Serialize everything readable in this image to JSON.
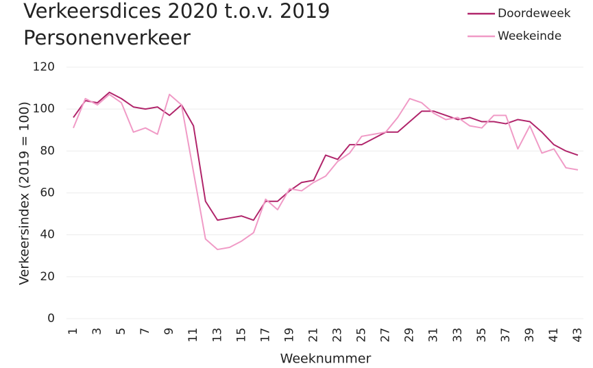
{
  "chart_data": {
    "type": "line",
    "title": "Verkeersdices 2020 t.o.v. 2019",
    "subtitle": "Personenverkeer",
    "x_label": "Weeknummer",
    "y_label": "Verkeersindex (2019 = 100)",
    "categories": [
      "1",
      null,
      "3",
      null,
      "5",
      null,
      "7",
      null,
      "9",
      null,
      "11",
      null,
      "13",
      null,
      "15",
      null,
      "17",
      null,
      "19",
      null,
      "21",
      null,
      "23",
      null,
      "25",
      null,
      "27",
      null,
      "29",
      null,
      "31",
      null,
      "33",
      null,
      "35",
      null,
      "37",
      null,
      "39",
      null,
      "41",
      null,
      "43"
    ],
    "series": [
      {
        "name": "Doordeweek",
        "color": "#b0246a",
        "values": [
          96,
          104,
          103,
          108,
          105,
          101,
          100,
          101,
          97,
          102,
          92,
          56,
          47,
          48,
          49,
          47,
          56,
          56,
          61,
          65,
          66,
          78,
          76,
          83,
          83,
          86,
          89,
          89,
          94,
          99,
          99,
          97,
          95,
          96,
          94,
          94,
          93,
          95,
          94,
          89,
          83,
          80,
          78
        ]
      },
      {
        "name": "Weekeinde",
        "color": "#f09ac6",
        "values": [
          91,
          105,
          102,
          107,
          103,
          89,
          91,
          88,
          107,
          102,
          70,
          38,
          33,
          34,
          37,
          41,
          57,
          52,
          62,
          61,
          65,
          68,
          75,
          79,
          87,
          88,
          89,
          96,
          105,
          103,
          98,
          95,
          96,
          92,
          91,
          97,
          97,
          81,
          92,
          79,
          81,
          72,
          71
        ]
      }
    ],
    "ylim": [
      0,
      120
    ],
    "yticks": [
      0,
      20,
      40,
      60,
      80,
      100,
      120
    ],
    "grid": true,
    "legend": "top-right"
  }
}
